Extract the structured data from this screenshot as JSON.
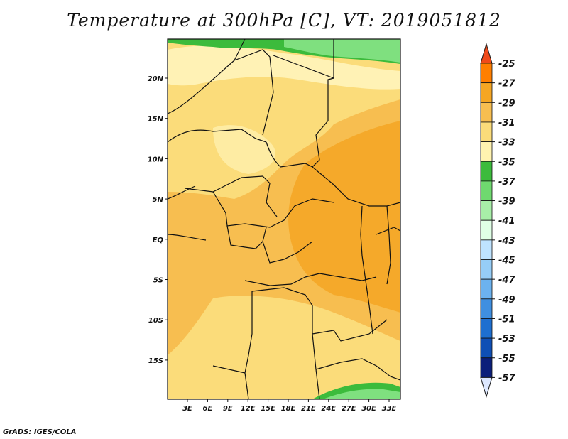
{
  "title": "Temperature at 300hPa [C], VT: 2019051812",
  "footer": "GrADS: IGES/COLA",
  "map": {
    "lon_labels": [
      "3E",
      "6E",
      "9E",
      "12E",
      "15E",
      "18E",
      "21E",
      "24E",
      "27E",
      "30E",
      "33E"
    ],
    "lat_labels": [
      "20N",
      "15N",
      "10N",
      "5N",
      "EQ",
      "5S",
      "10S",
      "15S"
    ]
  },
  "colorbar": {
    "labels": [
      "-25",
      "-27",
      "-29",
      "-31",
      "-33",
      "-35",
      "-37",
      "-39",
      "-41",
      "-43",
      "-45",
      "-47",
      "-49",
      "-51",
      "-53",
      "-55",
      "-57"
    ],
    "colors": [
      "#f04a1a",
      "#ff7f00",
      "#f5a623",
      "#f7be50",
      "#fbdc7a",
      "#fff3b0",
      "#3cbb3c",
      "#6fd96f",
      "#a8efa8",
      "#e0ffe6",
      "#bfe3ff",
      "#96cdf7",
      "#6cb2ef",
      "#3f8fe0",
      "#1e6fd0",
      "#0f4fb5",
      "#0b1f7a",
      "#dde8ff"
    ],
    "end_top_color": "#f04a1a",
    "end_bottom_color": "#dde8ff"
  },
  "colors": {
    "warm_orange": "#f5b042",
    "light_yellow": "#fbe28c",
    "pale_yellow": "#fff2b5",
    "green": "#3cbb3c",
    "light_green": "#7fe07f"
  }
}
